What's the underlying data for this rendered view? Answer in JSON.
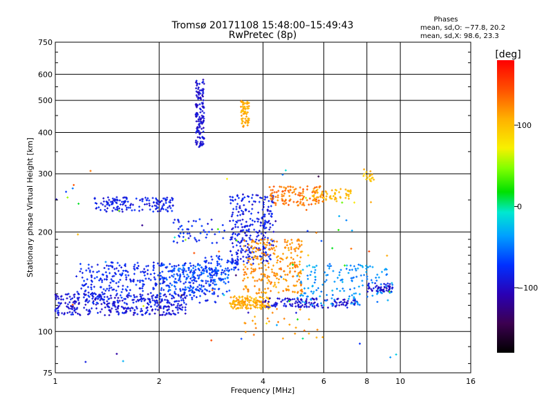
{
  "chart_data": {
    "type": "scatter",
    "title": "Tromsø 20171108 15:48:00–15:49:43",
    "subtitle": "RwPretec (8p)",
    "xlabel": "Frequency [MHz]",
    "ylabel": "Stationary phase Virtual Height [km]",
    "x_scale": "log",
    "y_scale": "log",
    "xlim": [
      1,
      16
    ],
    "ylim": [
      75,
      750
    ],
    "x_ticks": [
      "1",
      "2",
      "4",
      "6",
      "8",
      "10",
      "16"
    ],
    "y_ticks": [
      "75",
      "100",
      "200",
      "300",
      "400",
      "500",
      "600",
      "750"
    ],
    "grid": true,
    "phases_box": {
      "title": "Phases",
      "line_o": "mean, sd,O: −77.8, 20.2",
      "line_x": "mean, sd,X:  98.6, 23.3"
    },
    "colorbar": {
      "label": "[deg]",
      "range": [
        -180,
        180
      ],
      "ticks": [
        "100",
        "0",
        "−100"
      ],
      "tick_values": [
        100,
        0,
        -100
      ],
      "colormap": "rainbow: black-purple-blue-cyan-green-yellow-orange-red"
    },
    "clusters": [
      {
        "name": "F-low-o-blue-1",
        "x": [
          1.0,
          2.4
        ],
        "h": [
          112,
          130
        ],
        "phase": -92,
        "n": 340
      },
      {
        "name": "F-low-o-blue-2",
        "x": [
          1.15,
          3.0
        ],
        "h": [
          122,
          162
        ],
        "phase": -80,
        "n": 380
      },
      {
        "name": "F-low-o-cyan",
        "x": [
          2.0,
          3.2
        ],
        "h": [
          130,
          160
        ],
        "phase": -60,
        "n": 160
      },
      {
        "name": "O-trace-tail",
        "x": [
          2.7,
          3.4
        ],
        "h": [
          148,
          170
        ],
        "phase": -75,
        "n": 60
      },
      {
        "name": "Es-band-250",
        "x": [
          1.3,
          2.2
        ],
        "h": [
          230,
          255
        ],
        "phase": -85,
        "n": 150
      },
      {
        "name": "mid-200-blue",
        "x": [
          2.2,
          3.1
        ],
        "h": [
          185,
          220
        ],
        "phase": -80,
        "n": 50
      },
      {
        "name": "top-blue-cluster",
        "x": [
          2.55,
          2.7
        ],
        "h": [
          360,
          580
        ],
        "phase": -95,
        "n": 140
      },
      {
        "name": "top-yellow-cluster",
        "x": [
          3.45,
          3.65
        ],
        "h": [
          415,
          500
        ],
        "phase": 110,
        "n": 70
      },
      {
        "name": "O-cusp-blue",
        "x": [
          3.2,
          4.3
        ],
        "h": [
          160,
          260
        ],
        "phase": -85,
        "n": 280
      },
      {
        "name": "X-low-yellow",
        "x": [
          3.2,
          4.2
        ],
        "h": [
          117,
          128
        ],
        "phase": 110,
        "n": 150
      },
      {
        "name": "X-mid-orange",
        "x": [
          3.5,
          5.2
        ],
        "h": [
          130,
          190
        ],
        "phase": 120,
        "n": 260
      },
      {
        "name": "X-high-orange",
        "x": [
          4.2,
          6.0
        ],
        "h": [
          240,
          275
        ],
        "phase": 130,
        "n": 120
      },
      {
        "name": "X-high-yellow",
        "x": [
          5.5,
          7.2
        ],
        "h": [
          250,
          270
        ],
        "phase": 105,
        "n": 60
      },
      {
        "name": "O-low-right-blue",
        "x": [
          4.0,
          7.5
        ],
        "h": [
          118,
          126
        ],
        "phase": -95,
        "n": 130
      },
      {
        "name": "right-scatter-mixed",
        "x": [
          5.0,
          9.5
        ],
        "h": [
          120,
          160
        ],
        "phase": -40,
        "n": 160
      },
      {
        "name": "right-edge-blue",
        "x": [
          8.0,
          9.5
        ],
        "h": [
          132,
          140
        ],
        "phase": -95,
        "n": 50
      },
      {
        "name": "right-top-yellow",
        "x": [
          7.8,
          8.4
        ],
        "h": [
          285,
          310
        ],
        "phase": 100,
        "n": 20
      },
      {
        "name": "sparse-low",
        "x": [
          3.5,
          6.0
        ],
        "h": [
          95,
          118
        ],
        "phase": 120,
        "n": 25
      },
      {
        "name": "sparse-noise",
        "x": [
          1.0,
          10.0
        ],
        "h": [
          80,
          320
        ],
        "phase": 0,
        "n": 70
      }
    ]
  }
}
